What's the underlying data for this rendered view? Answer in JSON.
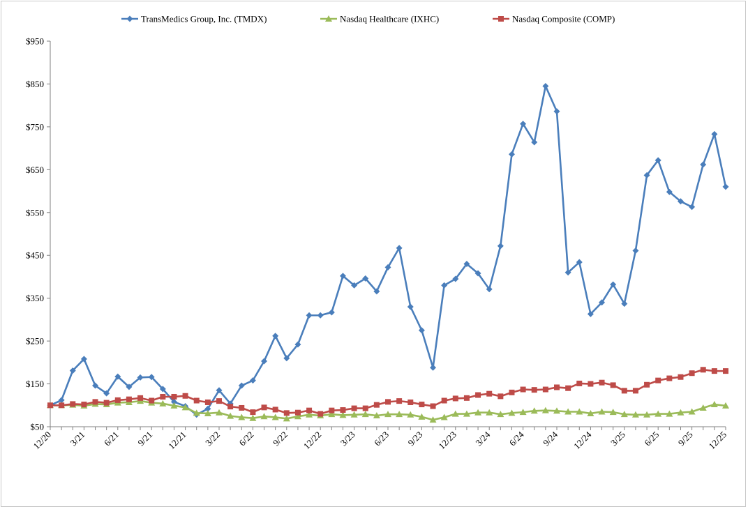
{
  "chart_data": {
    "type": "line",
    "title": "",
    "xlabel": "",
    "ylabel": "",
    "ylim": [
      50,
      950
    ],
    "y_ticks": [
      50,
      150,
      250,
      350,
      450,
      550,
      650,
      750,
      850,
      950
    ],
    "y_tick_labels": [
      "$50",
      "$150",
      "$250",
      "$350",
      "$450",
      "$550",
      "$650",
      "$750",
      "$850",
      "$950"
    ],
    "x_tick_labels": [
      "12/20",
      "3/21",
      "6/21",
      "9/21",
      "12/21",
      "3/22",
      "6/22",
      "9/22",
      "12/22",
      "3/23",
      "6/23",
      "9/23",
      "12/23",
      "3/24",
      "6/24",
      "9/24",
      "12/24",
      "3/25",
      "6/25",
      "9/25",
      "12/25"
    ],
    "x_tick_every": 3,
    "n_points": 61,
    "legend_position": "top-center",
    "grid": false,
    "series": [
      {
        "name": "TransMedics Group, Inc. (TMDX)",
        "color": "#4a7ebb",
        "marker": "diamond",
        "values": [
          100,
          112,
          181,
          208,
          146,
          128,
          167,
          143,
          165,
          166,
          138,
          108,
          98,
          78,
          92,
          135,
          104,
          146,
          158,
          203,
          262,
          210,
          242,
          310,
          310,
          317,
          402,
          380,
          396,
          366,
          422,
          467,
          330,
          275,
          188,
          380,
          395,
          430,
          408,
          371,
          472,
          686,
          757,
          714,
          845,
          786,
          410,
          434,
          313,
          340,
          382,
          337,
          461,
          637,
          672,
          598,
          576,
          563,
          662,
          733,
          610
        ]
      },
      {
        "name": "Nasdaq Healthcare (IXHC)",
        "color": "#9bbb59",
        "marker": "triangle",
        "values": [
          100,
          100,
          101,
          99,
          103,
          102,
          106,
          107,
          110,
          106,
          104,
          99,
          95,
          82,
          81,
          83,
          75,
          72,
          70,
          74,
          72,
          69,
          74,
          78,
          76,
          79,
          77,
          78,
          79,
          76,
          79,
          79,
          78,
          73,
          66,
          72,
          80,
          80,
          83,
          83,
          79,
          82,
          84,
          87,
          88,
          87,
          85,
          85,
          81,
          85,
          84,
          79,
          78,
          78,
          80,
          80,
          83,
          85,
          94,
          102,
          99
        ]
      },
      {
        "name": "Nasdaq Composite (COMP)",
        "color": "#be4b48",
        "marker": "square",
        "values": [
          100,
          100,
          103,
          102,
          108,
          106,
          112,
          114,
          117,
          111,
          120,
          120,
          122,
          111,
          107,
          110,
          97,
          94,
          84,
          95,
          90,
          82,
          83,
          88,
          80,
          88,
          89,
          93,
          93,
          101,
          108,
          110,
          107,
          102,
          98,
          111,
          116,
          117,
          124,
          127,
          121,
          130,
          137,
          136,
          137,
          142,
          140,
          151,
          150,
          153,
          147,
          134,
          134,
          148,
          158,
          163,
          166,
          175,
          183,
          180,
          180
        ]
      }
    ]
  }
}
